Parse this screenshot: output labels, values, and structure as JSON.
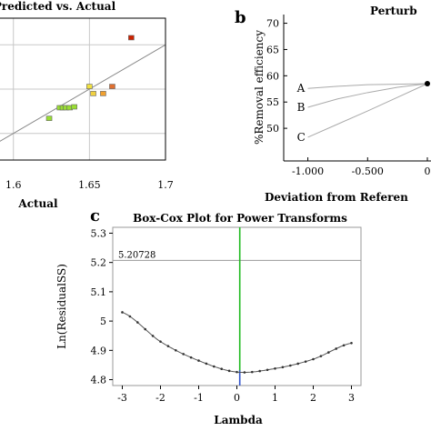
{
  "chart_data": [
    {
      "type": "scatter",
      "title": "Predicted vs. Actual",
      "xlabel": "Actual",
      "ylabel": "",
      "xticks": [
        "1.6",
        "1.65",
        "1.7"
      ],
      "xlim": [
        1.59,
        1.7
      ],
      "ylim": [
        1.57,
        1.73
      ],
      "grid": true,
      "diagonal": [
        [
          1.58,
          1.58
        ],
        [
          1.7,
          1.7
        ]
      ],
      "points": [
        {
          "x": 1.6235,
          "y": 1.617,
          "color": "#99dd33"
        },
        {
          "x": 1.6305,
          "y": 1.629,
          "color": "#99dd33"
        },
        {
          "x": 1.6325,
          "y": 1.629,
          "color": "#99dd33"
        },
        {
          "x": 1.6345,
          "y": 1.629,
          "color": "#99dd33"
        },
        {
          "x": 1.637,
          "y": 1.629,
          "color": "#99dd33"
        },
        {
          "x": 1.64,
          "y": 1.63,
          "color": "#99dd33"
        },
        {
          "x": 1.65,
          "y": 1.653,
          "color": "#f0e040"
        },
        {
          "x": 1.6525,
          "y": 1.645,
          "color": "#f0d040"
        },
        {
          "x": 1.659,
          "y": 1.645,
          "color": "#f0a030"
        },
        {
          "x": 1.665,
          "y": 1.653,
          "color": "#e07030"
        },
        {
          "x": 1.6775,
          "y": 1.708,
          "color": "#cc2200"
        }
      ]
    },
    {
      "type": "line",
      "panel_label": "b",
      "title": "Perturb",
      "xlabel": "Deviation from Referen",
      "ylabel": "%Removal efficiency",
      "xticks": [
        "-1.000",
        "-0.500",
        "0"
      ],
      "yticks": [
        "50",
        "55",
        "60",
        "65",
        "70"
      ],
      "xlim": [
        -1.05,
        0.0
      ],
      "ylim": [
        45,
        72
      ],
      "series": [
        {
          "name": "A",
          "x": [
            -1.0,
            -0.75,
            -0.5,
            -0.25,
            0.0
          ],
          "values": [
            57.6,
            58.0,
            58.3,
            58.4,
            58.5
          ]
        },
        {
          "name": "B",
          "x": [
            -1.0,
            -0.75,
            -0.5,
            -0.25,
            0.0
          ],
          "values": [
            54.0,
            55.6,
            56.8,
            57.8,
            58.5
          ]
        },
        {
          "name": "C",
          "x": [
            -1.0,
            -0.75,
            -0.5,
            -0.25,
            0.0
          ],
          "values": [
            48.3,
            50.8,
            53.3,
            55.9,
            58.5
          ]
        }
      ]
    },
    {
      "type": "line",
      "panel_label": "c",
      "title": "Box-Cox Plot for Power Transforms",
      "xlabel": "Lambda",
      "ylabel": "Ln(ResidualSS)",
      "xticks": [
        "-3",
        "-2",
        "-1",
        "0",
        "1",
        "2",
        "3"
      ],
      "yticks": [
        "4.8",
        "4.9",
        "5",
        "5.1",
        "5.2",
        "5.3"
      ],
      "xlim": [
        -3.25,
        3.25
      ],
      "ylim": [
        4.78,
        5.32
      ],
      "reference_line": {
        "value": 5.20728,
        "label": "5.20728"
      },
      "current_lambda": 0.1,
      "series": [
        {
          "name": "",
          "lambda_min": 0.0,
          "min_value": 4.826,
          "x": [
            -3.0,
            -2.0,
            -1.0,
            0.0,
            1.0,
            2.0,
            3.0
          ],
          "values": [
            5.03,
            4.93,
            4.865,
            4.826,
            4.838,
            4.87,
            4.925
          ]
        }
      ]
    }
  ]
}
